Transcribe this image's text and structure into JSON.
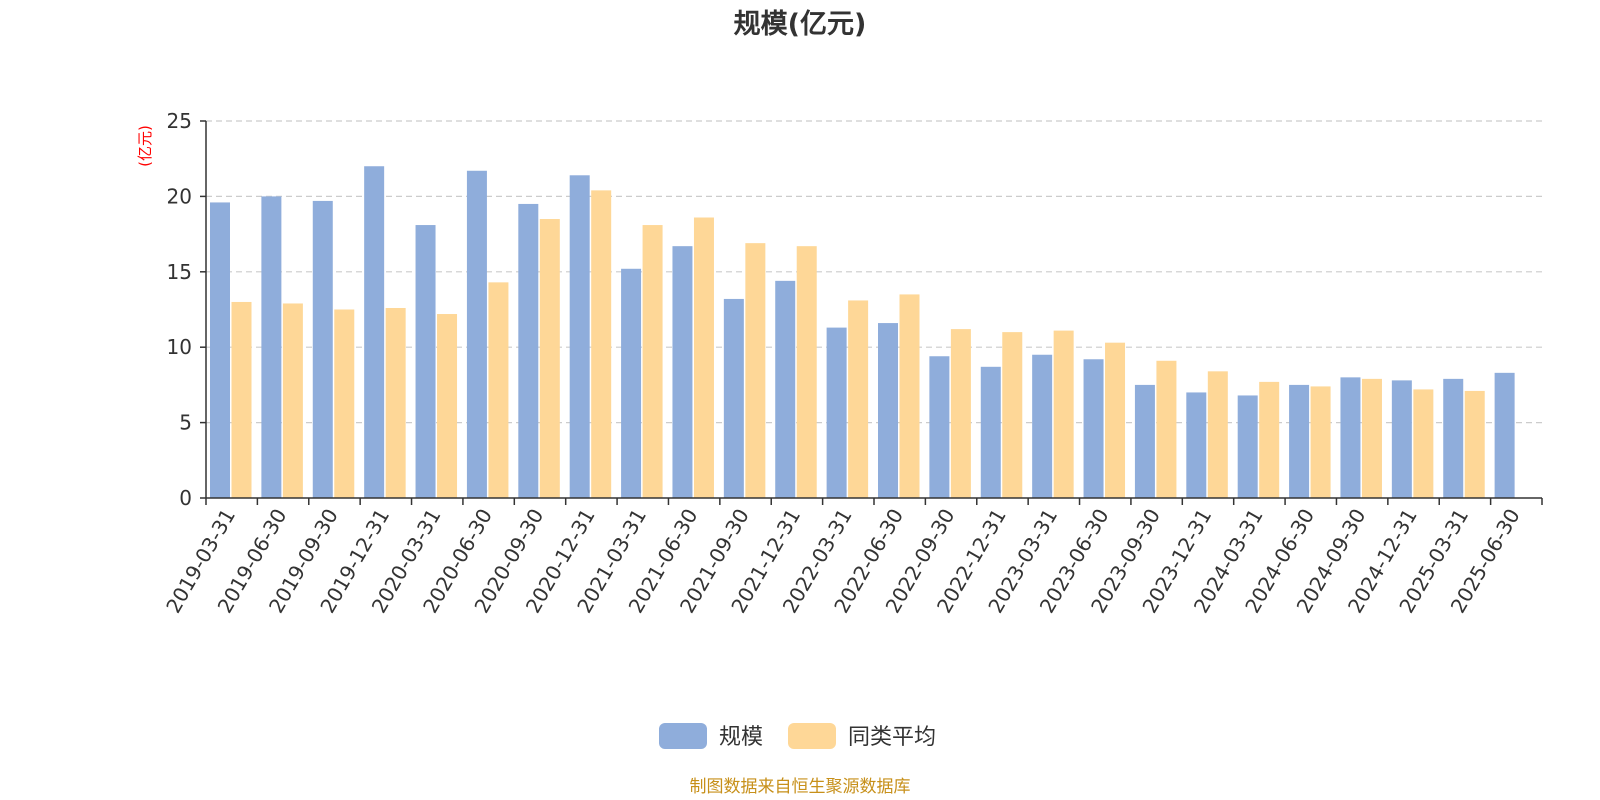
{
  "footer": {
    "source": "制图数据来自恒生聚源数据库"
  },
  "colors": {
    "series_1": "#8faddb",
    "series_2": "#fed797",
    "unit_label": "#ff0000",
    "footer": "#c7901a",
    "grid": "#cccccc",
    "axis": "#333333"
  },
  "chart_data": {
    "type": "bar",
    "title": "规模(亿元)",
    "ylabel": "(亿元)",
    "xlabel": "",
    "ylim": [
      0,
      25
    ],
    "yticks": [
      0,
      5,
      10,
      15,
      20,
      25
    ],
    "grid": true,
    "legend_position": "bottom-center",
    "categories": [
      "2019-03-31",
      "2019-06-30",
      "2019-09-30",
      "2019-12-31",
      "2020-03-31",
      "2020-06-30",
      "2020-09-30",
      "2020-12-31",
      "2021-03-31",
      "2021-06-30",
      "2021-09-30",
      "2021-12-31",
      "2022-03-31",
      "2022-06-30",
      "2022-09-30",
      "2022-12-31",
      "2023-03-31",
      "2023-06-30",
      "2023-09-30",
      "2023-12-31",
      "2024-03-31",
      "2024-06-30",
      "2024-09-30",
      "2024-12-31",
      "2025-03-31",
      "2025-06-30"
    ],
    "series": [
      {
        "name": "规模",
        "values": [
          19.6,
          20.0,
          19.7,
          22.0,
          18.1,
          21.7,
          19.5,
          21.4,
          15.2,
          16.7,
          13.2,
          14.4,
          11.3,
          11.6,
          9.4,
          8.7,
          9.5,
          9.2,
          7.5,
          7.0,
          6.8,
          7.5,
          8.0,
          7.8,
          7.9,
          8.3
        ]
      },
      {
        "name": "同类平均",
        "values": [
          13.0,
          12.9,
          12.5,
          12.6,
          12.2,
          14.3,
          18.5,
          20.4,
          18.1,
          18.6,
          16.9,
          16.7,
          13.1,
          13.5,
          11.2,
          11.0,
          11.1,
          10.3,
          9.1,
          8.4,
          7.7,
          7.4,
          7.9,
          7.2,
          7.1,
          null
        ]
      }
    ]
  }
}
